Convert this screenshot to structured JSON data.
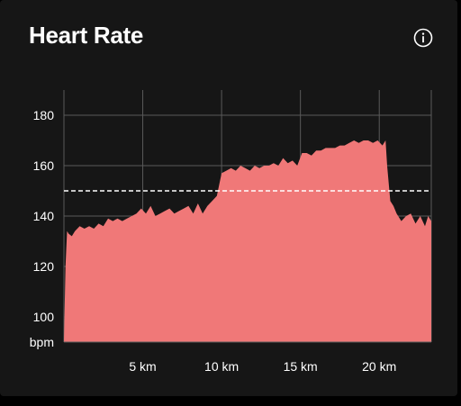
{
  "header": {
    "title": "Heart Rate",
    "info_icon": "info-icon"
  },
  "colors": {
    "background": "#161616",
    "area_fill": "#f07878",
    "grid": "#5a5a5a",
    "reference_line": "#ffffff",
    "text": "#ffffff"
  },
  "chart_data": {
    "type": "area",
    "title": "",
    "xlabel": "",
    "ylabel": "bpm",
    "x_unit": "km",
    "xlim": [
      0,
      23.3
    ],
    "ylim": [
      90,
      190
    ],
    "x_ticks": [
      5,
      10,
      15,
      20
    ],
    "x_tick_labels": [
      "5 km",
      "10 km",
      "15 km",
      "20 km"
    ],
    "y_ticks": [
      100,
      120,
      140,
      160,
      180
    ],
    "y_tick_labels": [
      "100",
      "120",
      "140",
      "160",
      "180"
    ],
    "y_unit_label": "bpm",
    "grid": true,
    "reference_line": {
      "value": 150,
      "style": "dashed"
    },
    "series": [
      {
        "x": [
          0,
          0.1,
          0.2,
          0.3,
          0.5,
          0.7,
          1.0,
          1.3,
          1.6,
          1.9,
          2.2,
          2.5,
          2.8,
          3.1,
          3.4,
          3.7,
          4.0,
          4.3,
          4.6,
          4.9,
          5.2,
          5.5,
          5.8,
          6.1,
          6.4,
          6.7,
          7.0,
          7.3,
          7.6,
          7.9,
          8.2,
          8.5,
          8.8,
          9.1,
          9.4,
          9.7,
          10.0,
          10.3,
          10.6,
          10.9,
          11.2,
          11.5,
          11.8,
          12.1,
          12.4,
          12.7,
          13.0,
          13.3,
          13.6,
          13.9,
          14.2,
          14.5,
          14.8,
          15.1,
          15.4,
          15.7,
          16.0,
          16.3,
          16.6,
          16.9,
          17.2,
          17.5,
          17.8,
          18.1,
          18.4,
          18.7,
          19.0,
          19.3,
          19.6,
          19.9,
          20.2,
          20.4,
          20.5,
          20.7,
          20.9,
          21.1,
          21.4,
          21.7,
          22.0,
          22.3,
          22.6,
          22.9,
          23.1,
          23.3
        ],
        "values": [
          90,
          120,
          134,
          133,
          132,
          134,
          136,
          135,
          136,
          135,
          137,
          136,
          139,
          138,
          139,
          138,
          139,
          140,
          141,
          143,
          141,
          144,
          140,
          141,
          142,
          143,
          141,
          142,
          143,
          144,
          141,
          145,
          141,
          144,
          146,
          148,
          157,
          158,
          159,
          158,
          160,
          159,
          158,
          160,
          159,
          160,
          160,
          161,
          160,
          163,
          161,
          162,
          160,
          165,
          165,
          164,
          166,
          166,
          167,
          167,
          167,
          168,
          168,
          169,
          170,
          169,
          170,
          170,
          169,
          170,
          168,
          170,
          160,
          146,
          144,
          141,
          138,
          140,
          141,
          137,
          140,
          136,
          140,
          138
        ]
      }
    ]
  }
}
